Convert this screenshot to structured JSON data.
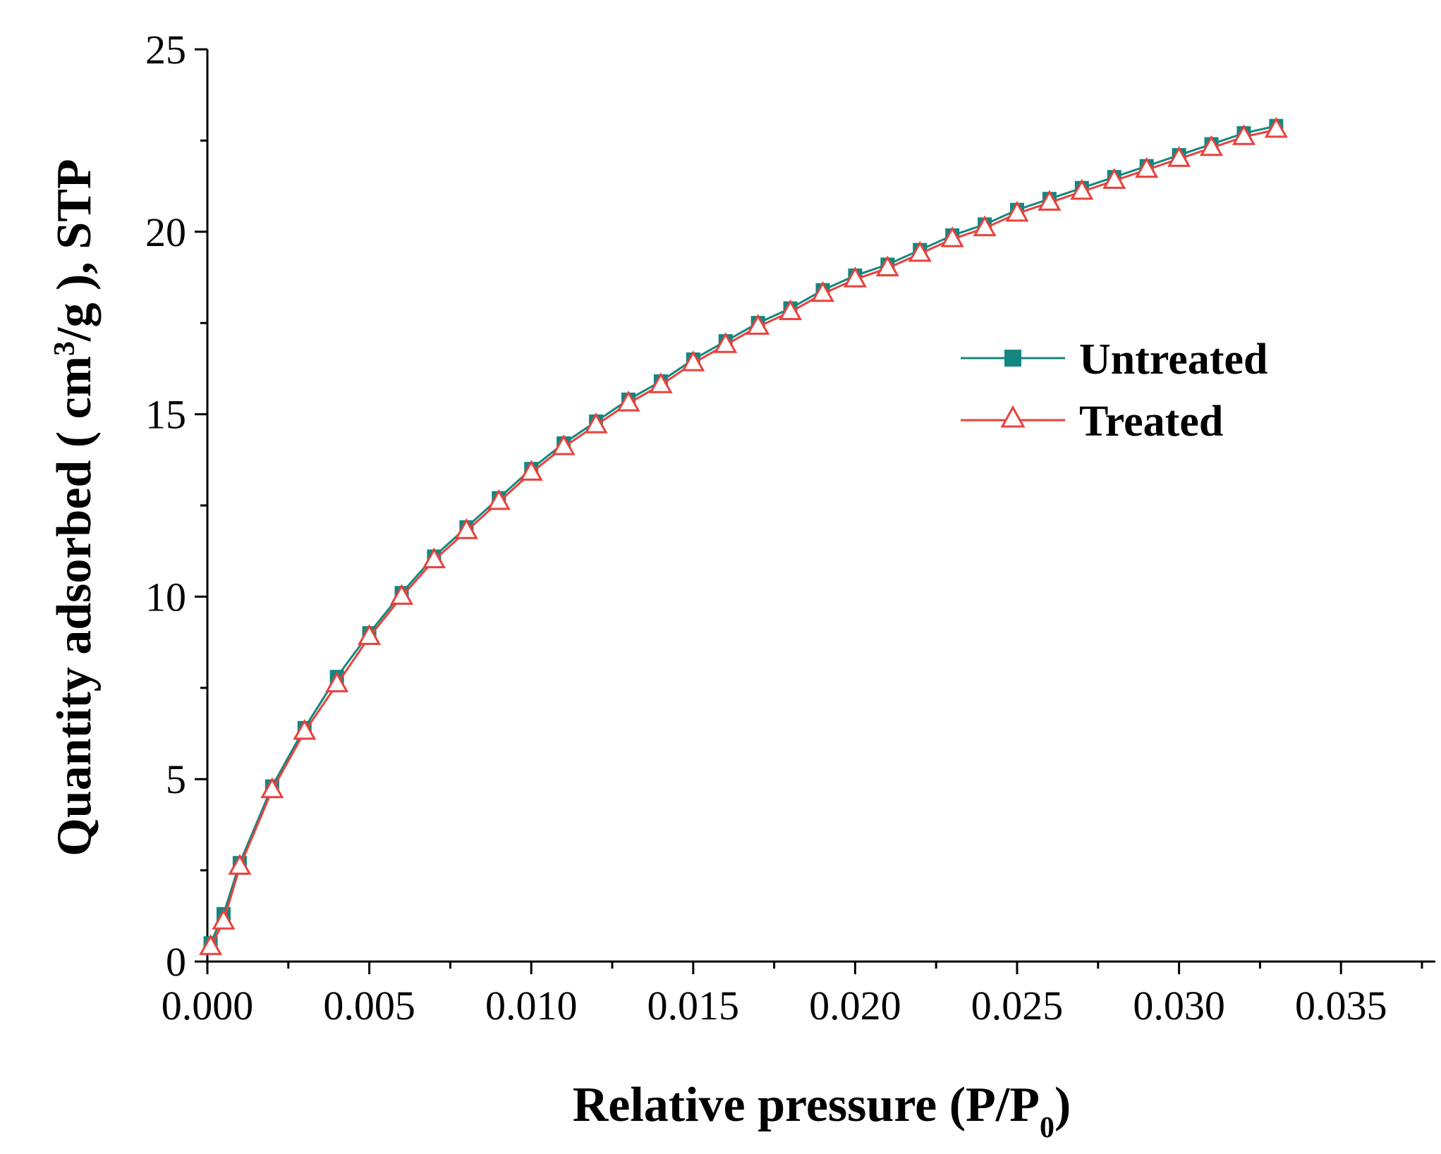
{
  "chart_data": {
    "type": "line",
    "title": "",
    "xlabel": "Relative pressure (P/P0)",
    "xlabel_main": "Relative pressure (P/P",
    "xlabel_sub": "0",
    "xlabel_tail": ")",
    "ylabel": "Quantity adsorbed ( cm3/g ), STP",
    "ylabel_main": "Quantity adsorbed ( cm",
    "ylabel_sup": "3",
    "ylabel_tail": "/g ),  STP",
    "xlim": [
      0,
      0.0375
    ],
    "ylim": [
      0,
      25
    ],
    "xticks": [
      0.0,
      0.005,
      0.01,
      0.015,
      0.02,
      0.025,
      0.03,
      0.035
    ],
    "xtick_labels": [
      "0.000",
      "0.005",
      "0.010",
      "0.015",
      "0.020",
      "0.025",
      "0.030",
      "0.035"
    ],
    "yticks": [
      0,
      5,
      10,
      15,
      20,
      25
    ],
    "ytick_labels": [
      "0",
      "5",
      "10",
      "15",
      "20",
      "25"
    ],
    "legend_position": "upper-right-center",
    "x": [
      0.0001,
      0.0005,
      0.001,
      0.002,
      0.003,
      0.004,
      0.005,
      0.006,
      0.007,
      0.008,
      0.009,
      0.01,
      0.011,
      0.012,
      0.013,
      0.014,
      0.015,
      0.016,
      0.017,
      0.018,
      0.019,
      0.02,
      0.021,
      0.022,
      0.023,
      0.024,
      0.025,
      0.026,
      0.027,
      0.028,
      0.029,
      0.03,
      0.031,
      0.032,
      0.033
    ],
    "series": [
      {
        "name": "Untreated",
        "color": "#138780",
        "marker": "filled-square",
        "values": [
          0.5,
          1.3,
          2.7,
          4.8,
          6.4,
          7.8,
          9.0,
          10.1,
          11.1,
          11.9,
          12.7,
          13.5,
          14.2,
          14.8,
          15.4,
          15.9,
          16.5,
          17.0,
          17.5,
          17.9,
          18.4,
          18.8,
          19.1,
          19.5,
          19.9,
          20.2,
          20.6,
          20.9,
          21.2,
          21.5,
          21.8,
          22.1,
          22.4,
          22.7,
          22.9
        ]
      },
      {
        "name": "Treated",
        "color": "#e8413c",
        "marker": "open-triangle",
        "values": [
          0.4,
          1.1,
          2.6,
          4.7,
          6.3,
          7.6,
          8.9,
          10.0,
          11.0,
          11.8,
          12.6,
          13.4,
          14.1,
          14.7,
          15.3,
          15.8,
          16.4,
          16.9,
          17.4,
          17.8,
          18.3,
          18.7,
          19.0,
          19.4,
          19.8,
          20.1,
          20.5,
          20.8,
          21.1,
          21.4,
          21.7,
          22.0,
          22.3,
          22.6,
          22.8
        ]
      }
    ]
  }
}
